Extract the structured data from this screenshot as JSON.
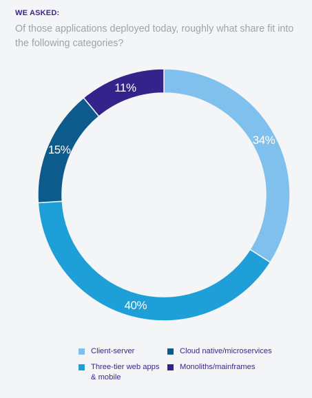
{
  "header": {
    "eyebrow": "WE ASKED:",
    "question": "Of those applications deployed today, roughly what share fit into the following categories?"
  },
  "chart_data": {
    "type": "pie",
    "style": "donut",
    "title": "",
    "legend": "bottom",
    "series": [
      {
        "name": "Client-server",
        "value": 34,
        "label": "34%",
        "color": "#80c0ec"
      },
      {
        "name": "Three-tier web apps & mobile",
        "value": 40,
        "label": "40%",
        "color": "#1f9fd8"
      },
      {
        "name": "Cloud native/microservices",
        "value": 15,
        "label": "15%",
        "color": "#0d5a8c"
      },
      {
        "name": "Monoliths/mainframes",
        "value": 11,
        "label": "11%",
        "color": "#33238a"
      }
    ],
    "legend_items": [
      {
        "series": 0,
        "text": "Client-server"
      },
      {
        "series": 2,
        "text": "Cloud native/microservices"
      },
      {
        "series": 1,
        "text": "Three-tier web apps & mobile"
      },
      {
        "series": 3,
        "text": "Monoliths/mainframes"
      }
    ]
  }
}
